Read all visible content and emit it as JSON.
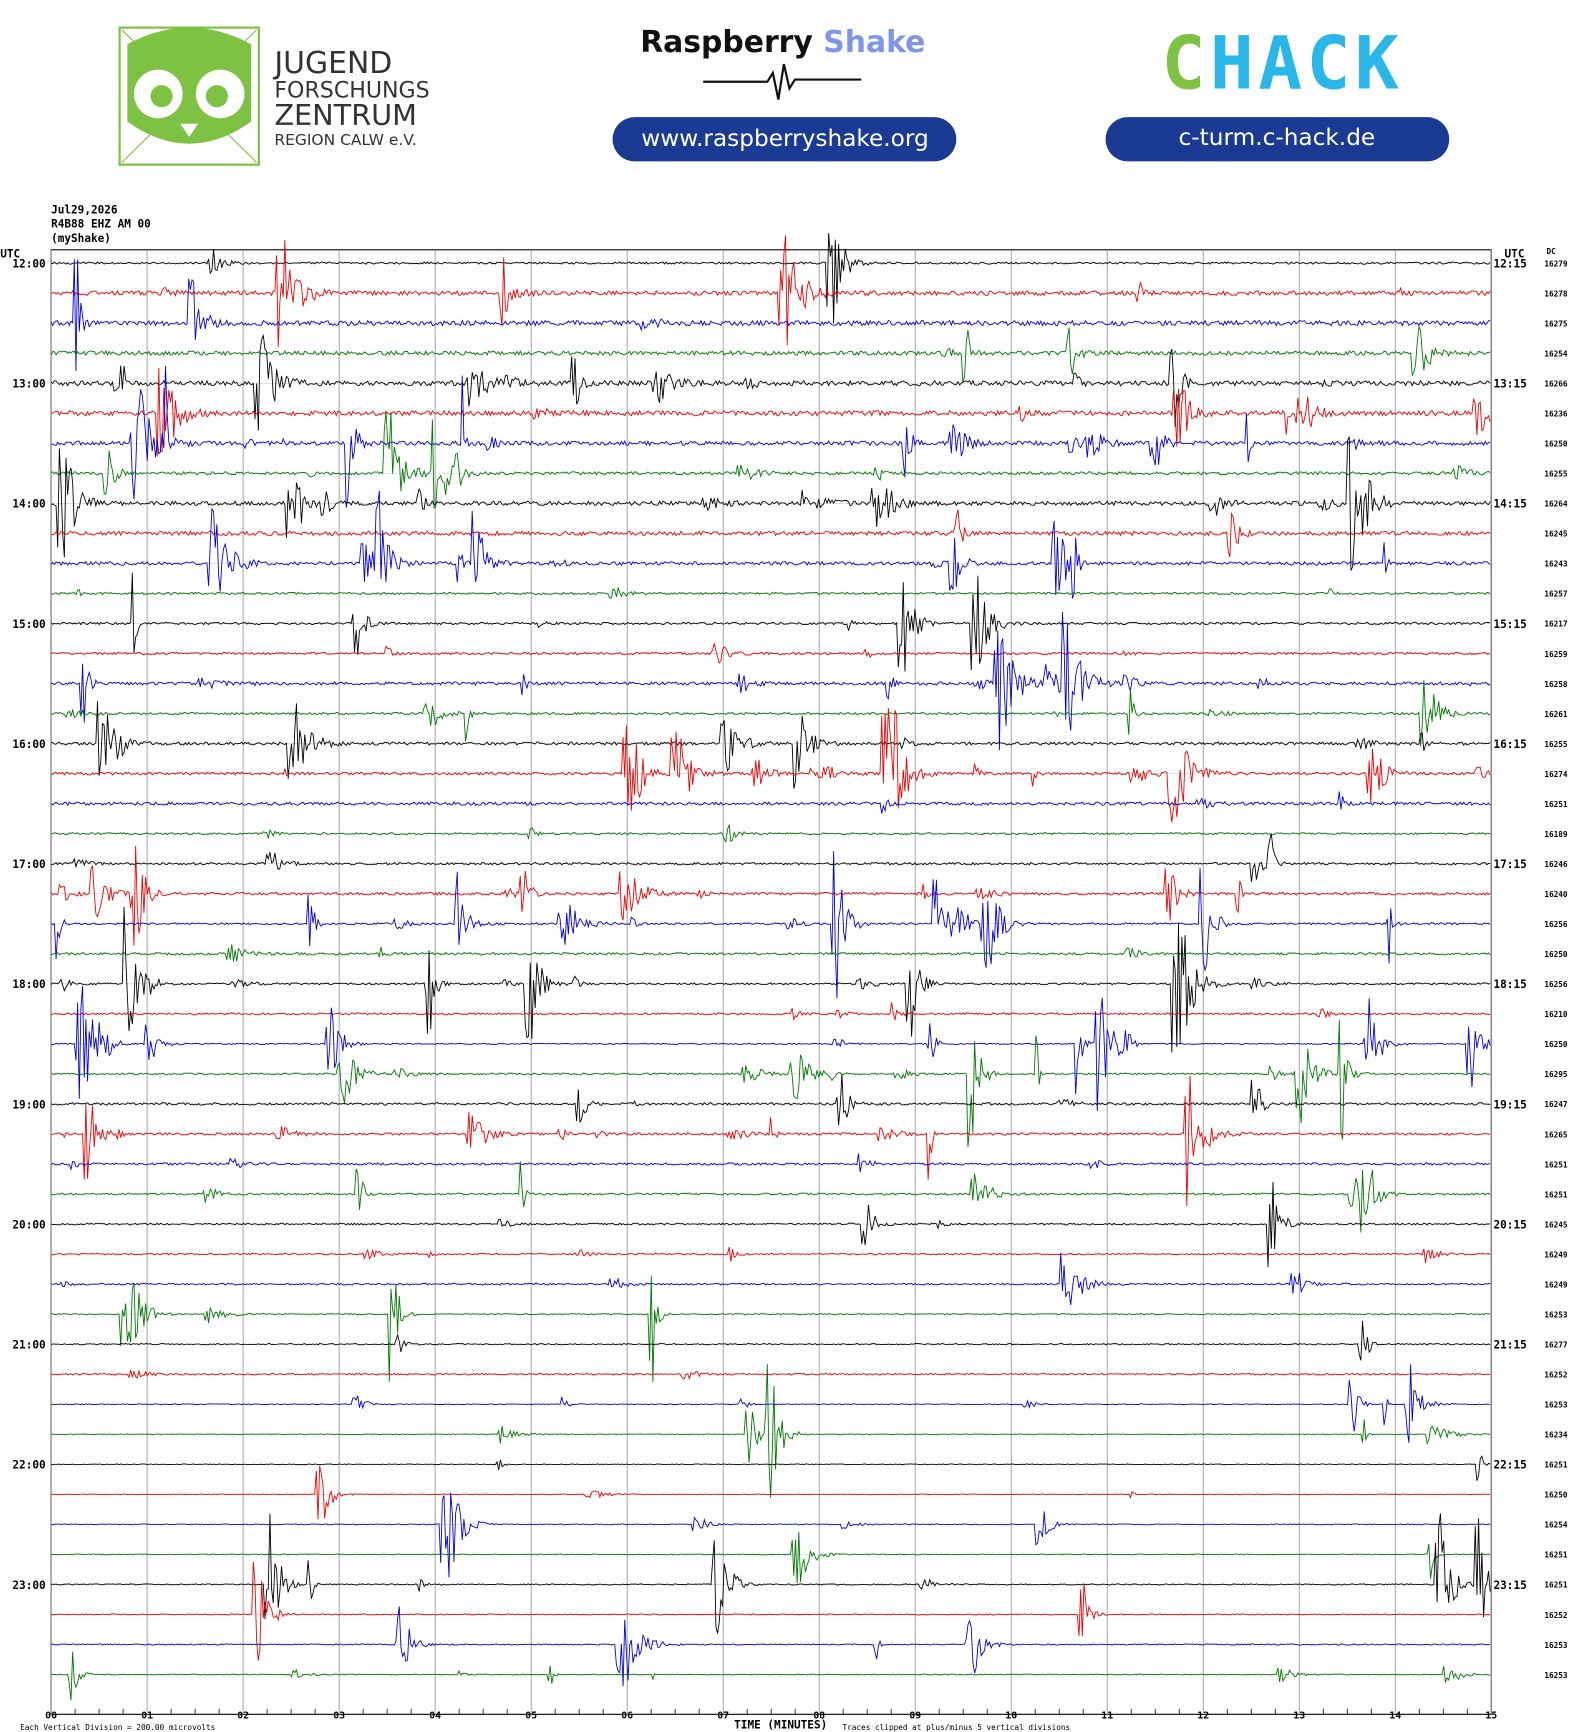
{
  "header": {
    "left_logo": [
      "JUGEND",
      "FORSCHUNGS",
      "ZENTRUM",
      "REGION CALW e.V."
    ],
    "center_title": [
      "Raspberry",
      "Shake"
    ],
    "center_url": "www.raspberryshake.org",
    "right_logo": [
      "C",
      "HACK"
    ],
    "right_url": "c-turm.c-hack.de"
  },
  "station": {
    "date": "Jul29,2026",
    "channel": "R4B88 EHZ AM 00",
    "source": "(myShake)"
  },
  "plot": {
    "utc_left": "UTC",
    "utc_right": "UTC",
    "dc": "DC",
    "left_labels": [
      "12:00",
      "13:00",
      "14:00",
      "15:00",
      "16:00",
      "17:00",
      "18:00",
      "19:00",
      "20:00",
      "21:00",
      "22:00",
      "23:00"
    ],
    "right_labels": [
      "12:15",
      "13:15",
      "14:15",
      "15:15",
      "16:15",
      "17:15",
      "18:15",
      "19:15",
      "20:15",
      "21:15",
      "22:15",
      "23:15"
    ],
    "dc_values": [
      16279,
      16278,
      16275,
      16254,
      16266,
      16236,
      16250,
      16255,
      16264,
      16245,
      16243,
      16257,
      16217,
      16259,
      16258,
      16261,
      16255,
      16274,
      16251,
      16189,
      16246,
      16240,
      16256,
      16250,
      16256,
      16210,
      16250,
      16295,
      16247,
      16265,
      16251,
      16251,
      16245,
      16249,
      16249,
      16253,
      16277,
      16252,
      16253,
      16234,
      16251,
      16250,
      16254,
      16251,
      16251,
      16252,
      16253,
      16253
    ],
    "x_ticks": [
      "00",
      "01",
      "02",
      "03",
      "04",
      "05",
      "06",
      "07",
      "08",
      "09",
      "10",
      "11",
      "12",
      "13",
      "14",
      "15"
    ],
    "x_title": "TIME (MINUTES)",
    "scale_note": "Each Vertical Division =  200.00 microvolts",
    "clip_note": "Traces clipped at plus/minus 5 vertical divisions"
  }
}
